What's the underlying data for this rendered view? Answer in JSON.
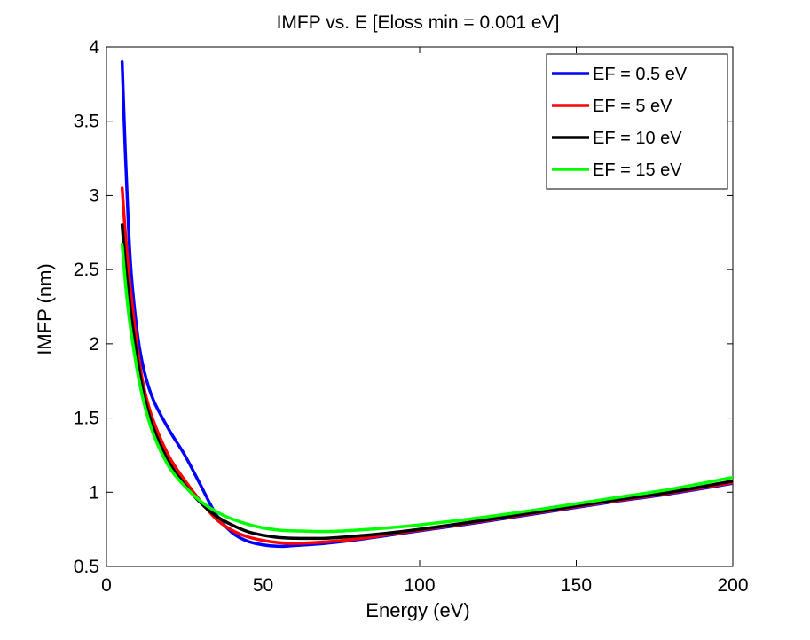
{
  "chart_data": {
    "type": "line",
    "title": "IMFP vs. E [Eloss min = 0.001 eV]",
    "xlabel": "Energy (eV)",
    "ylabel": "IMFP (nm)",
    "xlim": [
      0,
      200
    ],
    "ylim": [
      0.5,
      4
    ],
    "xticks": [
      0,
      50,
      100,
      150,
      200
    ],
    "xtick_labels": [
      "0",
      "50",
      "100",
      "150",
      "200"
    ],
    "yticks": [
      0.5,
      1,
      1.5,
      2,
      2.5,
      3,
      3.5,
      4
    ],
    "ytick_labels": [
      "0.5",
      "1",
      "1.5",
      "2",
      "2.5",
      "3",
      "3.5",
      "4"
    ],
    "grid": false,
    "legend_position": "top-right",
    "series": [
      {
        "name": "EF = 0.5 eV",
        "color": "#0000ff",
        "x": [
          5,
          6,
          7,
          8,
          10,
          12,
          15,
          20,
          25,
          30,
          35,
          40,
          45,
          50,
          55,
          60,
          70,
          80,
          90,
          100,
          120,
          140,
          160,
          180,
          200
        ],
        "y": [
          3.9,
          3.3,
          2.8,
          2.45,
          2.05,
          1.82,
          1.62,
          1.42,
          1.25,
          1.05,
          0.85,
          0.73,
          0.67,
          0.645,
          0.635,
          0.64,
          0.655,
          0.68,
          0.71,
          0.74,
          0.8,
          0.865,
          0.93,
          0.99,
          1.06
        ]
      },
      {
        "name": "EF = 5 eV",
        "color": "#ff0000",
        "x": [
          5,
          6,
          7,
          8,
          10,
          12,
          15,
          20,
          25,
          30,
          35,
          40,
          45,
          50,
          55,
          60,
          70,
          80,
          90,
          100,
          120,
          140,
          160,
          180,
          200
        ],
        "y": [
          3.05,
          2.75,
          2.5,
          2.3,
          1.95,
          1.7,
          1.48,
          1.24,
          1.08,
          0.94,
          0.82,
          0.745,
          0.7,
          0.675,
          0.66,
          0.655,
          0.665,
          0.685,
          0.715,
          0.745,
          0.805,
          0.87,
          0.935,
          0.995,
          1.065
        ]
      },
      {
        "name": "EF = 10 eV",
        "color": "#000000",
        "x": [
          5,
          6,
          7,
          8,
          10,
          12,
          15,
          20,
          25,
          30,
          35,
          40,
          45,
          50,
          55,
          60,
          70,
          80,
          90,
          100,
          120,
          140,
          160,
          180,
          200
        ],
        "y": [
          2.8,
          2.55,
          2.35,
          2.17,
          1.88,
          1.65,
          1.43,
          1.2,
          1.05,
          0.93,
          0.84,
          0.78,
          0.735,
          0.71,
          0.695,
          0.69,
          0.69,
          0.705,
          0.725,
          0.75,
          0.81,
          0.875,
          0.94,
          1.0,
          1.075
        ]
      },
      {
        "name": "EF = 15 eV",
        "color": "#00ff00",
        "x": [
          5,
          6,
          7,
          8,
          10,
          12,
          15,
          20,
          25,
          30,
          35,
          40,
          45,
          50,
          55,
          60,
          70,
          80,
          90,
          100,
          120,
          140,
          160,
          180,
          200
        ],
        "y": [
          2.67,
          2.42,
          2.22,
          2.06,
          1.8,
          1.6,
          1.39,
          1.17,
          1.04,
          0.94,
          0.87,
          0.82,
          0.785,
          0.76,
          0.745,
          0.74,
          0.735,
          0.745,
          0.76,
          0.78,
          0.83,
          0.89,
          0.955,
          1.02,
          1.1
        ]
      }
    ]
  }
}
